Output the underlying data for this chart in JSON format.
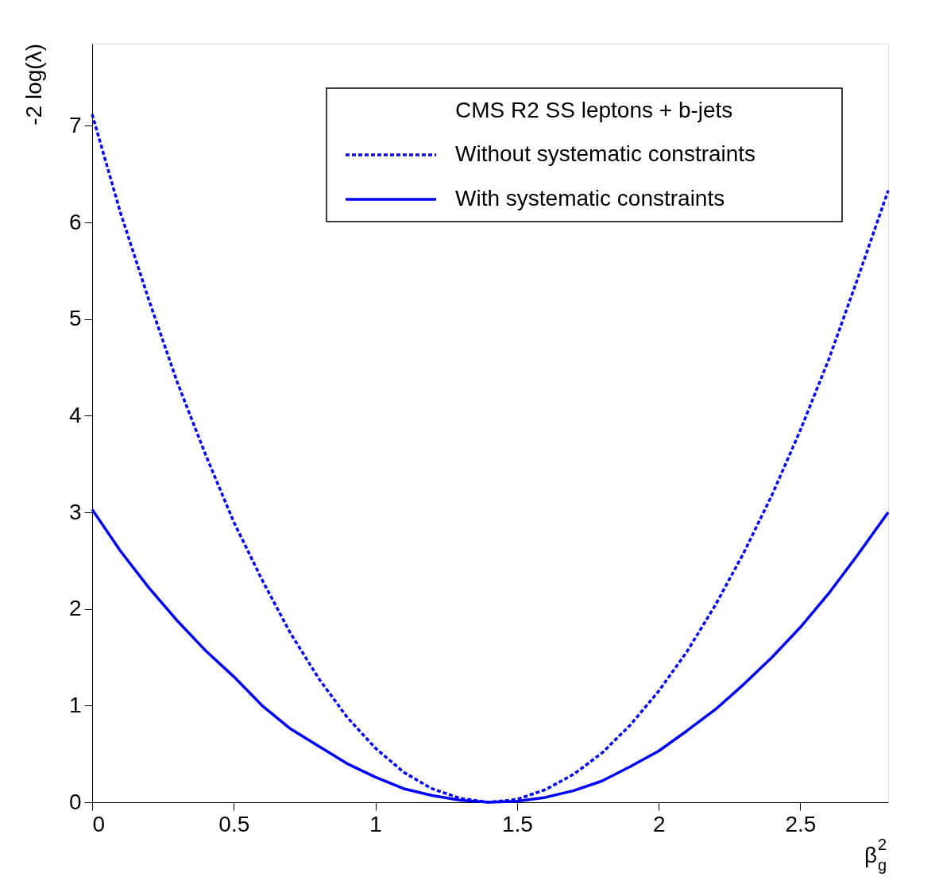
{
  "chart_data": {
    "type": "line",
    "xlabel": "β$_{g}$$^{2}$",
    "ylabel": "-2 log(λ)",
    "legend_title": "CMS R2 SS leptons + b-jets",
    "x": [
      0,
      0.1,
      0.2,
      0.3,
      0.4,
      0.5,
      0.6,
      0.7,
      0.8,
      0.9,
      1.0,
      1.1,
      1.2,
      1.3,
      1.4,
      1.5,
      1.6,
      1.7,
      1.8,
      1.9,
      2.0,
      2.1,
      2.2,
      2.3,
      2.4,
      2.5,
      2.6,
      2.7,
      2.81
    ],
    "series": [
      {
        "name": "Without systematic constraints",
        "color": "#0000ff",
        "line_style": "dotted",
        "values": [
          7.12,
          6.1,
          5.2,
          4.35,
          3.6,
          2.9,
          2.3,
          1.75,
          1.28,
          0.88,
          0.56,
          0.31,
          0.14,
          0.04,
          0,
          0.03,
          0.13,
          0.29,
          0.51,
          0.8,
          1.15,
          1.56,
          2.04,
          2.58,
          3.18,
          3.85,
          4.58,
          5.4,
          6.33
        ]
      },
      {
        "name": "With systematic constraints",
        "color": "#0000ff",
        "line_style": "solid",
        "values": [
          3.03,
          2.6,
          2.22,
          1.88,
          1.57,
          1.3,
          1.0,
          0.76,
          0.58,
          0.4,
          0.26,
          0.14,
          0.07,
          0.02,
          0,
          0.01,
          0.05,
          0.12,
          0.22,
          0.37,
          0.53,
          0.74,
          0.96,
          1.22,
          1.5,
          1.81,
          2.16,
          2.55,
          3.0
        ]
      }
    ],
    "xlim": [
      0,
      2.81
    ],
    "ylim": [
      0,
      7.85
    ],
    "xticks": [
      0,
      0.5,
      1,
      1.5,
      2,
      2.5
    ],
    "yticks": [
      0,
      1,
      2,
      3,
      4,
      5,
      6,
      7
    ],
    "grid": false,
    "legend": "top right",
    "marker": "none"
  }
}
